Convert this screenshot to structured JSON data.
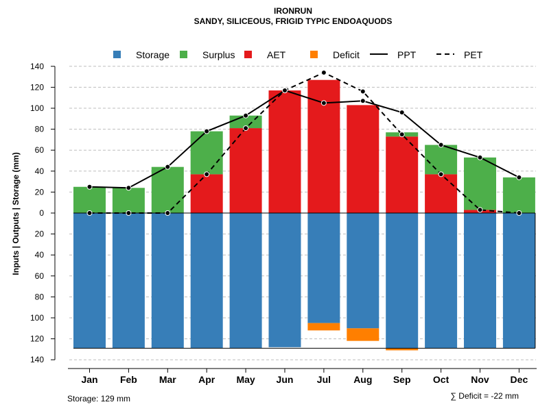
{
  "colors": {
    "storage": "#377EB8",
    "surplus": "#4DAF4A",
    "aet": "#E41A1C",
    "deficit": "#FF7F00",
    "line": "#000000",
    "grid": "#bdbdbd"
  },
  "chart_data": {
    "type": "bar",
    "title": "IRONRUN",
    "subtitle": "SANDY, SILICEOUS, FRIGID TYPIC ENDOAQUODS",
    "ylabel": "Inputs | Outputs | Storage    (mm)",
    "ylim": [
      -140,
      140
    ],
    "yticks": [
      140,
      120,
      100,
      80,
      60,
      40,
      20,
      0,
      -20,
      -40,
      -60,
      -80,
      -100,
      -120,
      -140
    ],
    "ytick_labels": [
      "140",
      "120",
      "100",
      "80",
      "60",
      "40",
      "20",
      "0",
      "20",
      "40",
      "60",
      "80",
      "100",
      "120",
      "140"
    ],
    "categories": [
      "Jan",
      "Feb",
      "Mar",
      "Apr",
      "May",
      "Jun",
      "Jul",
      "Aug",
      "Sep",
      "Oct",
      "Nov",
      "Dec"
    ],
    "legend": [
      {
        "key": "storage",
        "label": "Storage",
        "kind": "box"
      },
      {
        "key": "surplus",
        "label": "Surplus",
        "kind": "box"
      },
      {
        "key": "aet",
        "label": "AET",
        "kind": "box"
      },
      {
        "key": "deficit",
        "label": "Deficit",
        "kind": "box"
      },
      {
        "key": "ppt",
        "label": "PPT",
        "kind": "solid"
      },
      {
        "key": "pet",
        "label": "PET",
        "kind": "dashed"
      }
    ],
    "series": [
      {
        "name": "AET",
        "values": [
          0,
          0,
          0,
          37,
          81,
          117,
          127,
          103,
          73,
          37,
          3,
          0
        ]
      },
      {
        "name": "Surplus",
        "values": [
          25,
          24,
          44,
          41,
          12,
          0,
          0,
          0,
          4,
          28,
          50,
          34
        ]
      },
      {
        "name": "Storage",
        "values": [
          129,
          129,
          129,
          129,
          129,
          128,
          105,
          110,
          129,
          129,
          129,
          129
        ]
      },
      {
        "name": "Deficit",
        "values": [
          0,
          0,
          0,
          0,
          0,
          0,
          7,
          12,
          2,
          0,
          0,
          0
        ]
      },
      {
        "name": "PPT",
        "values": [
          25,
          24,
          44,
          78,
          93,
          117,
          105,
          107,
          96,
          65,
          53,
          34
        ]
      },
      {
        "name": "PET",
        "values": [
          0,
          0,
          0,
          37,
          81,
          117,
          134,
          116,
          75,
          37,
          3,
          0
        ]
      }
    ],
    "storage_capacity": 129
  },
  "footer": {
    "storage_label": "Storage: 129 mm",
    "deficit_label": "∑ Deficit = -22 mm"
  }
}
